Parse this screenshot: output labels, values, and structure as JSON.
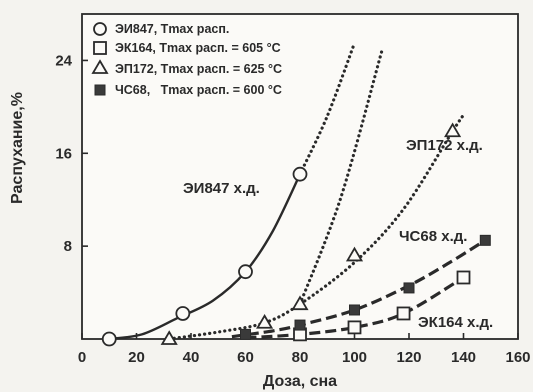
{
  "chart_data": {
    "type": "scatter",
    "xlabel": "Доза, сна",
    "ylabel": "Распухание,%",
    "xlim": [
      0,
      160
    ],
    "ylim": [
      0,
      28
    ],
    "x_ticks": [
      0,
      20,
      40,
      60,
      80,
      100,
      120,
      140,
      160
    ],
    "y_ticks": [
      8,
      16,
      24
    ],
    "legend_position": "top-left",
    "series": [
      {
        "key": "ei847",
        "name": "ЭИ847, Tmax расп.",
        "label": "ЭИ847 х.д.",
        "marker": "open-circle",
        "line_style": "solid",
        "points": [
          [
            10,
            0
          ],
          [
            37,
            2.2
          ],
          [
            60,
            5.8
          ],
          [
            80,
            14.2
          ]
        ],
        "curve": [
          [
            10,
            0
          ],
          [
            22,
            0.4
          ],
          [
            35,
            1.8
          ],
          [
            48,
            3.3
          ],
          [
            60,
            5.8
          ],
          [
            70,
            9.3
          ],
          [
            80,
            14.2
          ]
        ],
        "extension": [
          [
            80,
            14.2
          ],
          [
            90,
            19.2
          ],
          [
            100,
            25.5
          ]
        ]
      },
      {
        "key": "ek164",
        "name": "ЭК164, Tmax расп. = 605 °C",
        "label": "ЭК164 х.д.",
        "marker": "open-square",
        "line_style": "dashed",
        "points": [
          [
            80,
            0.4
          ],
          [
            100,
            1.0
          ],
          [
            118,
            2.2
          ],
          [
            140,
            5.3
          ]
        ],
        "curve": [
          [
            60,
            0.1
          ],
          [
            80,
            0.4
          ],
          [
            100,
            1.0
          ],
          [
            118,
            2.2
          ],
          [
            140,
            5.3
          ]
        ]
      },
      {
        "key": "ep172",
        "name": "ЭП172, Tmax расп. = 625 °C",
        "label": "ЭП172 х.д.",
        "marker": "open-triangle",
        "line_style": "dotted",
        "points": [
          [
            32,
            0
          ],
          [
            67,
            1.4
          ],
          [
            80,
            3.0
          ],
          [
            100,
            7.2
          ],
          [
            136,
            17.9
          ]
        ],
        "curve": [
          [
            32,
            0
          ],
          [
            50,
            0.6
          ],
          [
            67,
            1.4
          ],
          [
            80,
            3.0
          ],
          [
            100,
            6.6
          ],
          [
            118,
            11.2
          ],
          [
            136,
            17.9
          ],
          [
            140,
            19.3
          ]
        ],
        "extension": [
          [
            80,
            3.0
          ],
          [
            95,
            12.2
          ],
          [
            110,
            24.8
          ]
        ]
      },
      {
        "key": "chs68",
        "name": "ЧС68,   Tmax расп. = 600 °C",
        "label": "ЧС68 х.д.",
        "marker": "filled-square",
        "line_style": "dashed",
        "points": [
          [
            60,
            0.4
          ],
          [
            80,
            1.2
          ],
          [
            100,
            2.5
          ],
          [
            120,
            4.4
          ],
          [
            148,
            8.5
          ]
        ],
        "curve": [
          [
            55,
            0.2
          ],
          [
            70,
            0.7
          ],
          [
            80,
            1.2
          ],
          [
            100,
            2.5
          ],
          [
            120,
            4.6
          ],
          [
            135,
            6.6
          ],
          [
            148,
            8.5
          ]
        ]
      }
    ]
  }
}
